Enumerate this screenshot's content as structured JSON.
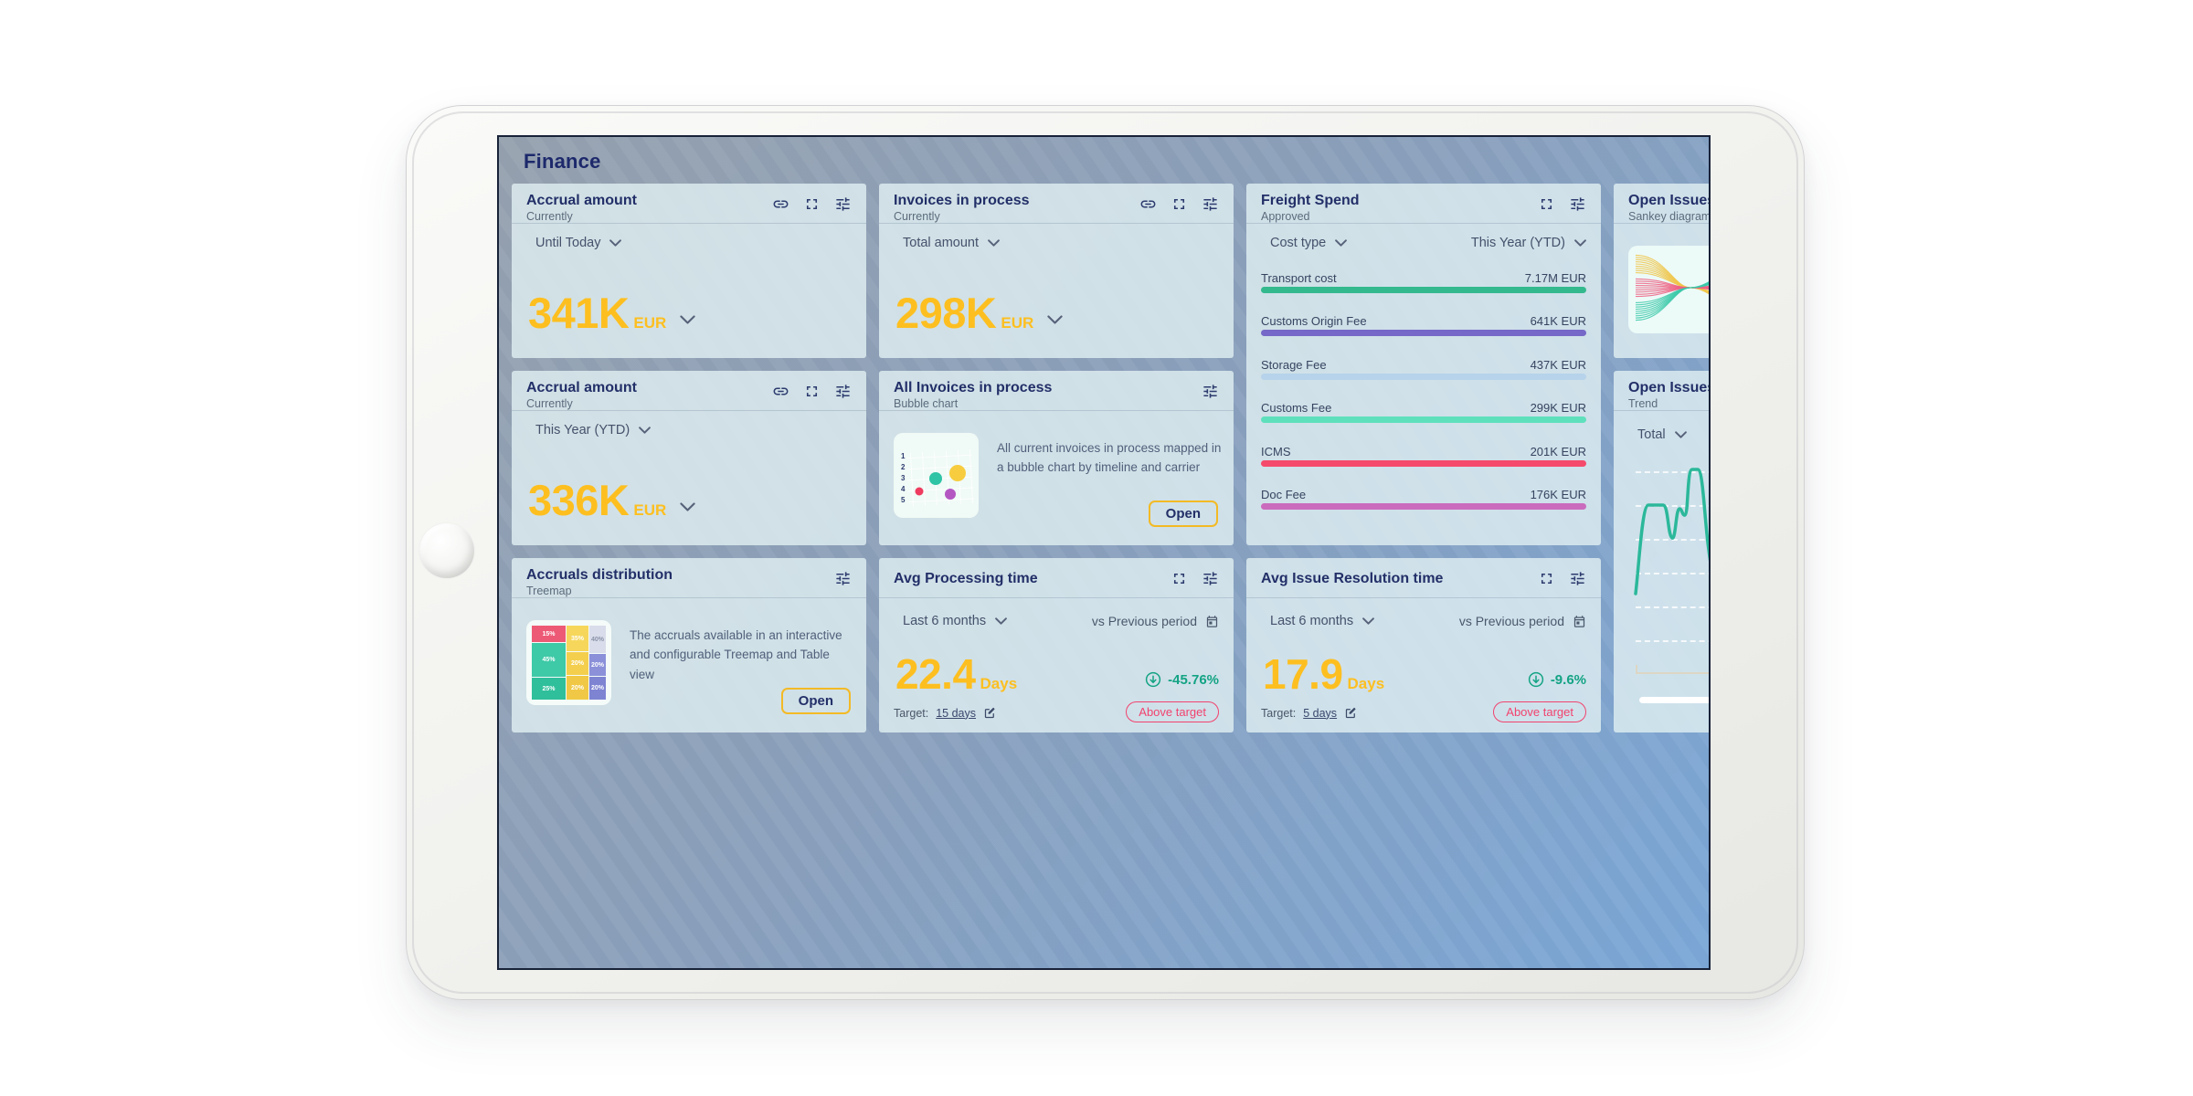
{
  "page": {
    "title": "Finance"
  },
  "icons": {
    "link-icon": "chain-link",
    "fullscreen-icon": "corner-brackets",
    "tune-icon": "horizontal-sliders",
    "chevron-down-icon": "⌄",
    "calendar-icon": "calendar",
    "edit-icon": "pencil-square",
    "down-circle-icon": "circled-down-arrow",
    "home-button": "tablet-home-circle"
  },
  "colors": {
    "accent_amber": "#fdbf20",
    "title_navy": "#222f68",
    "positive_teal": "#13a384",
    "alert_red": "#f2426e",
    "trend_line": "#2bb89a",
    "open_button_border": "#f3ba25"
  },
  "cards": {
    "accrual1": {
      "title": "Accrual amount",
      "subtitle": "Currently",
      "filter": "Until Today",
      "value": "341K",
      "unit": "EUR"
    },
    "invoices": {
      "title": "Invoices in process",
      "subtitle": "Currently",
      "filter": "Total amount",
      "value": "298K",
      "unit": "EUR"
    },
    "freight": {
      "title": "Freight Spend",
      "subtitle": "Approved",
      "filter_left": "Cost type",
      "filter_right": "This Year (YTD)",
      "rows": [
        {
          "label": "Transport cost",
          "value": "7.17M EUR",
          "color": "#34b98e"
        },
        {
          "label": "Customs Origin Fee",
          "value": "641K EUR",
          "color": "#7668c8"
        },
        {
          "label": "Storage Fee",
          "value": "437K EUR",
          "color": "#b7d3eb"
        },
        {
          "label": "Customs Fee",
          "value": "299K EUR",
          "color": "#5fe0bd"
        },
        {
          "label": "ICMS",
          "value": "201K EUR",
          "color": "#f54a6b"
        },
        {
          "label": "Doc Fee",
          "value": "176K EUR",
          "color": "#ca6bbd"
        }
      ]
    },
    "sankey": {
      "title": "Open Issues",
      "subtitle": "Sankey diagram"
    },
    "accrual2": {
      "title": "Accrual amount",
      "subtitle": "Currently",
      "filter": "This Year (YTD)",
      "value": "336K",
      "unit": "EUR"
    },
    "bubble": {
      "title": "All Invoices in process",
      "subtitle": "Bubble chart",
      "description": "All current invoices in process mapped in a bubble chart by timeline and carrier",
      "open_label": "Open",
      "axis_labels": [
        "1",
        "2",
        "3",
        "4",
        "5"
      ],
      "bubbles": [
        {
          "color": "#2ec4a5"
        },
        {
          "color": "#f7cd3f"
        },
        {
          "color": "#ee3b5f"
        },
        {
          "color": "#b356c2"
        }
      ]
    },
    "trend": {
      "title": "Open Issues",
      "subtitle": "Trend",
      "filter": "Total"
    },
    "treemap": {
      "title": "Accruals distribution",
      "subtitle": "Treemap",
      "description": "The accruals available in an interactive and configurable Treemap and Table view",
      "open_label": "Open",
      "cells": [
        {
          "label": "15%",
          "color": "#ed5a75"
        },
        {
          "label": "45%",
          "color": "#3ec9a7"
        },
        {
          "label": "25%",
          "color": "#2fbf9b"
        },
        {
          "label": "35%",
          "color": "#f6d75b"
        },
        {
          "label": "20%",
          "color": "#f4cf4e"
        },
        {
          "label": "20%",
          "color": "#f0c845"
        },
        {
          "label": "40%",
          "color": "#d9dcea"
        },
        {
          "label": "20%",
          "color": "#8b90d9"
        },
        {
          "label": "20%",
          "color": "#7e84d2"
        }
      ]
    },
    "processing": {
      "title": "Avg Processing time",
      "filter": "Last 6 months",
      "compare_label": "vs Previous period",
      "value": "22.4",
      "unit": "Days",
      "delta": "-45.76%",
      "target_label": "Target:",
      "target_value": "15 days",
      "badge": "Above target"
    },
    "resolution": {
      "title": "Avg Issue Resolution time",
      "filter": "Last 6 months",
      "compare_label": "vs Previous period",
      "value": "17.9",
      "unit": "Days",
      "delta": "-9.6%",
      "target_label": "Target:",
      "target_value": "5 days",
      "badge": "Above target"
    }
  }
}
